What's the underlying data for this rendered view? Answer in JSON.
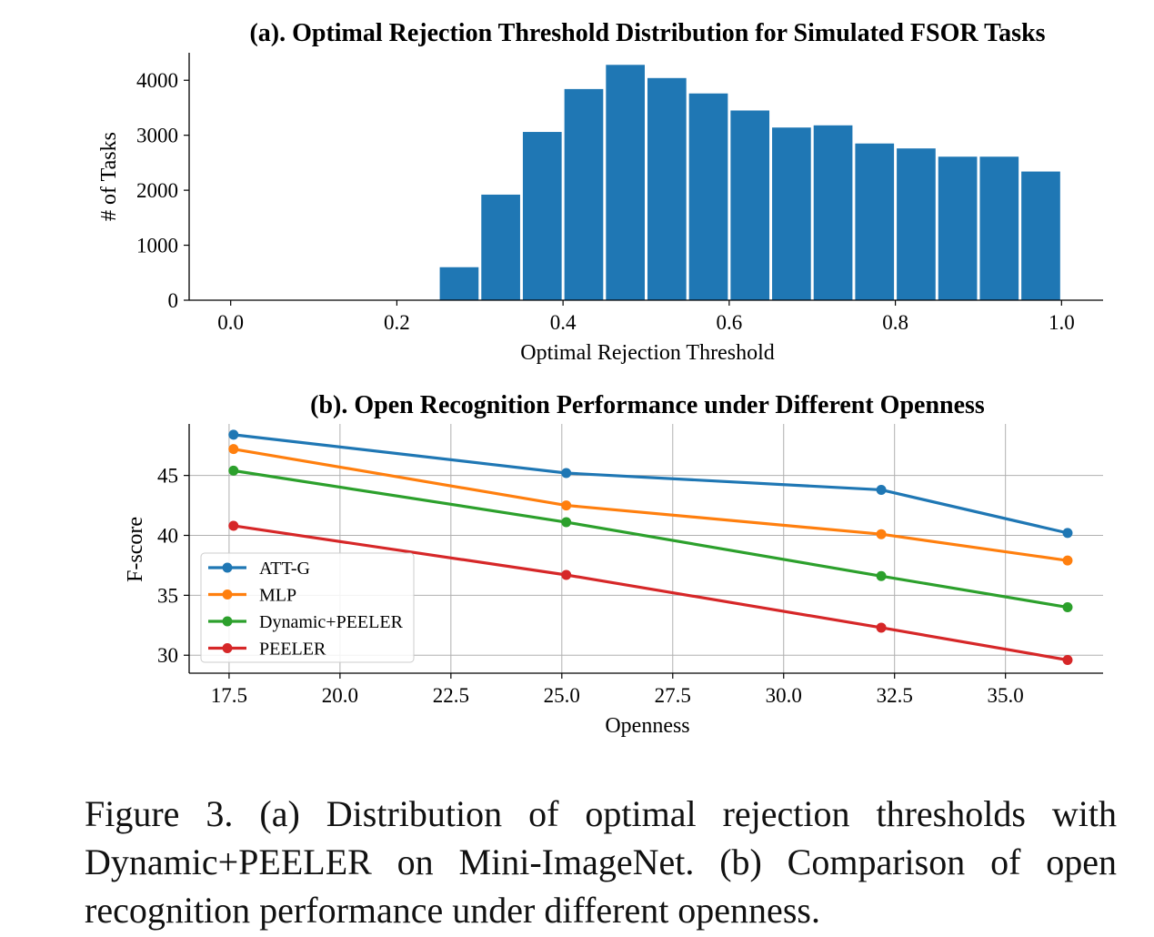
{
  "chart_data": [
    {
      "type": "bar",
      "title": "(a). Optimal Rejection Threshold Distribution for Simulated FSOR Tasks",
      "xlabel": "Optimal Rejection Threshold",
      "ylabel": "# of Tasks",
      "xlim": [
        -0.05,
        1.05
      ],
      "ylim": [
        0,
        4500
      ],
      "xticks": [
        "0.0",
        "0.2",
        "0.4",
        "0.6",
        "0.8",
        "1.0"
      ],
      "yticks": [
        "0",
        "1000",
        "2000",
        "3000",
        "4000"
      ],
      "bar_color": "#1f77b4",
      "grid": false,
      "bins": [
        {
          "x0": 0.25,
          "x1": 0.3,
          "value": 600
        },
        {
          "x0": 0.3,
          "x1": 0.35,
          "value": 1920
        },
        {
          "x0": 0.35,
          "x1": 0.4,
          "value": 3060
        },
        {
          "x0": 0.4,
          "x1": 0.45,
          "value": 3840
        },
        {
          "x0": 0.45,
          "x1": 0.5,
          "value": 4280
        },
        {
          "x0": 0.5,
          "x1": 0.55,
          "value": 4040
        },
        {
          "x0": 0.55,
          "x1": 0.6,
          "value": 3760
        },
        {
          "x0": 0.6,
          "x1": 0.65,
          "value": 3450
        },
        {
          "x0": 0.65,
          "x1": 0.7,
          "value": 3140
        },
        {
          "x0": 0.7,
          "x1": 0.75,
          "value": 3180
        },
        {
          "x0": 0.75,
          "x1": 0.8,
          "value": 2850
        },
        {
          "x0": 0.8,
          "x1": 0.85,
          "value": 2760
        },
        {
          "x0": 0.85,
          "x1": 0.9,
          "value": 2610
        },
        {
          "x0": 0.9,
          "x1": 0.95,
          "value": 2610
        },
        {
          "x0": 0.95,
          "x1": 1.0,
          "value": 2340
        }
      ]
    },
    {
      "type": "line",
      "title": "(b). Open Recognition Performance under Different Openness",
      "xlabel": "Openness",
      "ylabel": "F-score",
      "xlim": [
        16.6,
        37.2
      ],
      "ylim": [
        28.5,
        49.3
      ],
      "xticks": [
        "17.5",
        "20.0",
        "22.5",
        "25.0",
        "27.5",
        "30.0",
        "32.5",
        "35.0"
      ],
      "yticks": [
        "30",
        "35",
        "40",
        "45"
      ],
      "grid": true,
      "legend_position": "lower-left",
      "x": [
        17.6,
        25.1,
        32.2,
        36.4
      ],
      "series": [
        {
          "name": "ATT-G",
          "color": "#1f77b4",
          "values": [
            48.4,
            45.2,
            43.8,
            40.2
          ]
        },
        {
          "name": "MLP",
          "color": "#ff7f0e",
          "values": [
            47.2,
            42.5,
            40.1,
            37.9
          ]
        },
        {
          "name": "Dynamic+PEELER",
          "color": "#2ca02c",
          "values": [
            45.4,
            41.1,
            36.6,
            34.0
          ]
        },
        {
          "name": "PEELER",
          "color": "#d62728",
          "values": [
            40.8,
            36.7,
            32.3,
            29.6
          ]
        }
      ]
    }
  ],
  "caption": {
    "text": "Figure 3.  (a) Distribution of optimal rejection thresholds with Dynamic+PEELER on Mini-ImageNet.  (b) Comparison of open recognition performance under different openness."
  }
}
